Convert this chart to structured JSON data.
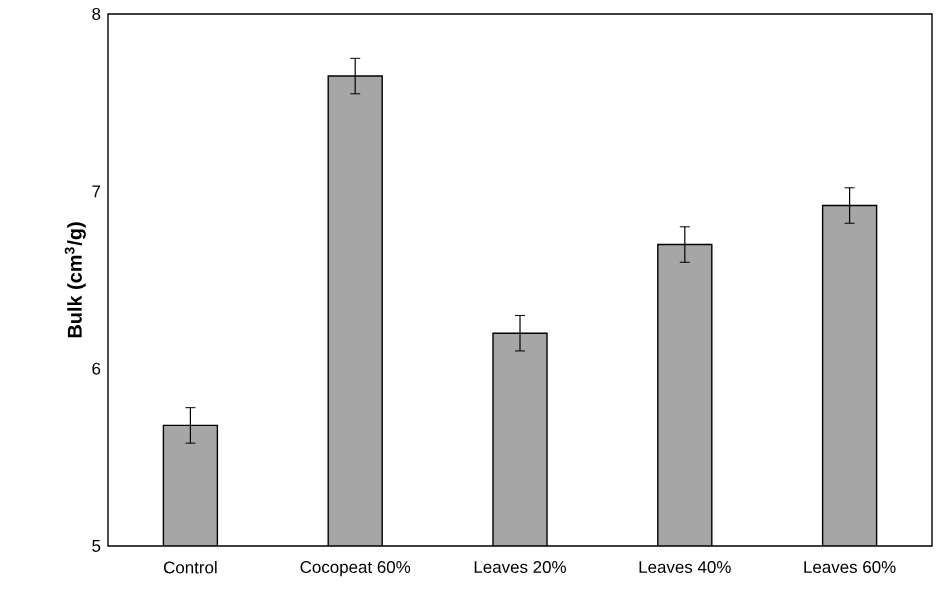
{
  "chart_data": {
    "type": "bar",
    "ylabel": "Bulk (cm$^{3}$/g)",
    "categories": [
      "Control",
      "Cocopeat 60%",
      "Leaves 20%",
      "Leaves 40%",
      "Leaves 60%"
    ],
    "values": [
      5.68,
      7.65,
      6.2,
      6.7,
      6.92
    ],
    "errors": [
      0.1,
      0.1,
      0.1,
      0.1,
      0.1
    ],
    "color": "#a6a6a6",
    "ylim": [
      5,
      8
    ],
    "yticks": [
      5,
      6,
      7,
      8
    ]
  }
}
